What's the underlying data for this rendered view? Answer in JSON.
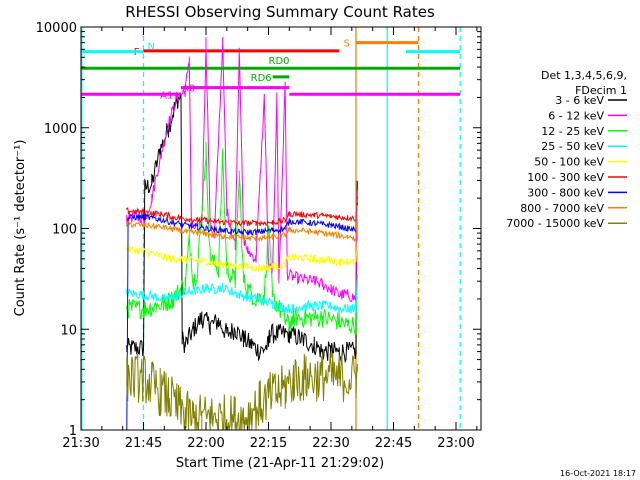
{
  "chart_data": {
    "type": "line",
    "title": "RHESSI Observing Summary Count Rates",
    "xlabel": "Start Time (21-Apr-11 21:29:02)",
    "ylabel": "Count Rate (s⁻¹ detector⁻¹)",
    "x_unit": "minutes after 21:29:02",
    "xlim": [
      0,
      96
    ],
    "ylim": [
      1,
      10000
    ],
    "y_scale": "log",
    "x_ticks": [
      {
        "t": 0,
        "label": "21:30"
      },
      {
        "t": 15,
        "label": "21:45"
      },
      {
        "t": 30,
        "label": "22:00"
      },
      {
        "t": 45,
        "label": "22:15"
      },
      {
        "t": 60,
        "label": "22:30"
      },
      {
        "t": 75,
        "label": "22:45"
      },
      {
        "t": 90,
        "label": "23:00"
      }
    ],
    "y_ticks": [
      {
        "v": 1,
        "label": "1"
      },
      {
        "v": 10,
        "label": "10"
      },
      {
        "v": 100,
        "label": "100"
      },
      {
        "v": 1000,
        "label": "1000"
      },
      {
        "v": 10000,
        "label": "10000"
      }
    ],
    "legend": {
      "position": "right",
      "header": [
        "Det 1,3,4,5,6,9,",
        "FDecim 1"
      ]
    },
    "series": [
      {
        "name": "3 - 6 keV",
        "color": "#000000",
        "noise": 0.1,
        "points": [
          [
            11,
            6.5
          ],
          [
            15,
            6.5
          ],
          [
            15.3,
            250
          ],
          [
            17,
            280
          ],
          [
            19,
            600
          ],
          [
            21,
            1000
          ],
          [
            23,
            1900
          ],
          [
            24,
            2000
          ],
          [
            24.3,
            8
          ],
          [
            25,
            7
          ],
          [
            27,
            10
          ],
          [
            29,
            13
          ],
          [
            31,
            11
          ],
          [
            33,
            12
          ],
          [
            35,
            9
          ],
          [
            37,
            10
          ],
          [
            39,
            8
          ],
          [
            41,
            7
          ],
          [
            43,
            6
          ],
          [
            45,
            7
          ],
          [
            45.3,
            9
          ],
          [
            50,
            9
          ],
          [
            53,
            8
          ],
          [
            56,
            7
          ],
          [
            58,
            6
          ],
          [
            60,
            6
          ],
          [
            62,
            6
          ],
          [
            66,
            6
          ],
          [
            66.3,
            250
          ]
        ]
      },
      {
        "name": "6 - 12 keV",
        "color": "#ff00ff",
        "noise": 0.06,
        "points": [
          [
            11,
            130
          ],
          [
            15,
            130
          ],
          [
            15.3,
            120
          ],
          [
            17,
            200
          ],
          [
            19,
            500
          ],
          [
            21,
            1100
          ],
          [
            23,
            2000
          ],
          [
            25,
            2300
          ],
          [
            26,
            5000
          ],
          [
            26.5,
            100
          ],
          [
            29,
            110
          ],
          [
            30,
            7200
          ],
          [
            31,
            110
          ],
          [
            32,
            80
          ],
          [
            34,
            7000
          ],
          [
            35,
            150
          ],
          [
            37,
            70
          ],
          [
            38,
            6500
          ],
          [
            39,
            80
          ],
          [
            40,
            60
          ],
          [
            42,
            50
          ],
          [
            44,
            2000
          ],
          [
            45,
            40
          ],
          [
            46,
            40
          ],
          [
            47,
            2000
          ],
          [
            47.5,
            30
          ],
          [
            49,
            2700
          ],
          [
            49.5,
            35
          ],
          [
            52,
            32
          ],
          [
            56,
            30
          ],
          [
            58,
            28
          ],
          [
            60,
            25
          ],
          [
            62,
            22
          ],
          [
            64,
            22
          ],
          [
            66,
            20
          ],
          [
            66.3,
            210
          ]
        ]
      },
      {
        "name": "12 - 25 keV",
        "color": "#00ff00",
        "noise": 0.1,
        "points": [
          [
            11,
            16
          ],
          [
            15,
            16
          ],
          [
            15.3,
            16
          ],
          [
            18,
            17
          ],
          [
            20,
            18
          ],
          [
            22,
            20
          ],
          [
            24,
            25
          ],
          [
            25,
            28
          ],
          [
            26,
            80
          ],
          [
            27,
            30
          ],
          [
            28,
            40
          ],
          [
            30,
            600
          ],
          [
            31,
            50
          ],
          [
            33,
            40
          ],
          [
            34,
            500
          ],
          [
            35,
            40
          ],
          [
            37,
            30
          ],
          [
            38,
            350
          ],
          [
            39,
            30
          ],
          [
            40,
            25
          ],
          [
            42,
            20
          ],
          [
            44,
            22
          ],
          [
            45,
            100
          ],
          [
            46,
            20
          ],
          [
            47,
            18
          ],
          [
            49,
            12
          ],
          [
            50,
            11
          ],
          [
            51,
            13
          ],
          [
            54,
            13
          ],
          [
            58,
            13
          ],
          [
            62,
            12
          ],
          [
            64,
            11
          ],
          [
            66,
            11
          ],
          [
            66.3,
            30
          ]
        ]
      },
      {
        "name": "25 - 50 keV",
        "color": "#00ffff",
        "noise": 0.05,
        "points": [
          [
            11,
            23
          ],
          [
            15,
            22
          ],
          [
            18,
            21
          ],
          [
            20,
            20
          ],
          [
            22,
            21
          ],
          [
            24,
            22
          ],
          [
            26,
            24
          ],
          [
            28,
            24
          ],
          [
            30,
            26
          ],
          [
            32,
            25
          ],
          [
            34,
            26
          ],
          [
            36,
            24
          ],
          [
            38,
            22
          ],
          [
            40,
            21
          ],
          [
            42,
            20
          ],
          [
            44,
            19
          ],
          [
            46,
            18
          ],
          [
            48,
            17
          ],
          [
            49,
            16
          ],
          [
            51,
            16
          ],
          [
            53,
            17
          ],
          [
            56,
            17
          ],
          [
            58,
            17
          ],
          [
            60,
            17
          ],
          [
            62,
            16
          ],
          [
            64,
            16
          ],
          [
            66,
            16
          ],
          [
            66.3,
            30
          ]
        ]
      },
      {
        "name": "50 - 100 keV",
        "color": "#ffff00",
        "noise": 0.04,
        "points": [
          [
            11,
            62
          ],
          [
            15,
            60
          ],
          [
            18,
            55
          ],
          [
            20,
            52
          ],
          [
            22,
            50
          ],
          [
            24,
            50
          ],
          [
            26,
            48
          ],
          [
            28,
            48
          ],
          [
            30,
            47
          ],
          [
            32,
            45
          ],
          [
            34,
            44
          ],
          [
            36,
            43
          ],
          [
            38,
            42
          ],
          [
            40,
            42
          ],
          [
            42,
            41
          ],
          [
            44,
            41
          ],
          [
            46,
            42
          ],
          [
            48,
            43
          ],
          [
            49,
            45
          ],
          [
            50,
            52
          ],
          [
            53,
            51
          ],
          [
            56,
            50
          ],
          [
            58,
            49
          ],
          [
            60,
            48
          ],
          [
            62,
            47
          ],
          [
            64,
            47
          ],
          [
            66,
            46
          ],
          [
            66.3,
            70
          ]
        ]
      },
      {
        "name": "100 - 300 keV",
        "color": "#ff0000",
        "noise": 0.03,
        "points": [
          [
            11,
            150
          ],
          [
            15,
            145
          ],
          [
            18,
            140
          ],
          [
            20,
            138
          ],
          [
            22,
            130
          ],
          [
            24,
            127
          ],
          [
            26,
            124
          ],
          [
            28,
            122
          ],
          [
            30,
            120
          ],
          [
            32,
            118
          ],
          [
            34,
            116
          ],
          [
            36,
            115
          ],
          [
            38,
            113
          ],
          [
            40,
            113
          ],
          [
            42,
            113
          ],
          [
            44,
            114
          ],
          [
            46,
            115
          ],
          [
            48,
            118
          ],
          [
            49,
            120
          ],
          [
            50,
            140
          ],
          [
            53,
            138
          ],
          [
            56,
            136
          ],
          [
            58,
            134
          ],
          [
            60,
            132
          ],
          [
            62,
            130
          ],
          [
            64,
            128
          ],
          [
            66,
            125
          ],
          [
            66.3,
            200
          ]
        ]
      },
      {
        "name": "300 - 800 keV",
        "color": "#0000ff",
        "noise": 0.03,
        "points": [
          [
            11,
            1
          ],
          [
            11.3,
            128
          ],
          [
            15,
            130
          ],
          [
            18,
            125
          ],
          [
            20,
            120
          ],
          [
            22,
            115
          ],
          [
            24,
            110
          ],
          [
            26,
            106
          ],
          [
            28,
            103
          ],
          [
            30,
            100
          ],
          [
            32,
            98
          ],
          [
            34,
            96
          ],
          [
            36,
            94
          ],
          [
            38,
            92
          ],
          [
            40,
            92
          ],
          [
            42,
            92
          ],
          [
            44,
            94
          ],
          [
            46,
            96
          ],
          [
            48,
            98
          ],
          [
            49,
            100
          ],
          [
            50,
            118
          ],
          [
            53,
            116
          ],
          [
            56,
            113
          ],
          [
            58,
            110
          ],
          [
            60,
            108
          ],
          [
            62,
            104
          ],
          [
            64,
            100
          ],
          [
            66,
            96
          ],
          [
            66.3,
            170
          ]
        ]
      },
      {
        "name": "800 - 7000 keV",
        "color": "#ff7f00",
        "noise": 0.03,
        "points": [
          [
            11,
            110
          ],
          [
            15,
            108
          ],
          [
            18,
            105
          ],
          [
            20,
            102
          ],
          [
            22,
            98
          ],
          [
            24,
            95
          ],
          [
            26,
            92
          ],
          [
            28,
            90
          ],
          [
            30,
            88
          ],
          [
            32,
            86
          ],
          [
            34,
            84
          ],
          [
            36,
            83
          ],
          [
            38,
            81
          ],
          [
            40,
            80
          ],
          [
            42,
            80
          ],
          [
            44,
            81
          ],
          [
            46,
            82
          ],
          [
            48,
            84
          ],
          [
            49,
            86
          ],
          [
            50,
            96
          ],
          [
            53,
            95
          ],
          [
            56,
            92
          ],
          [
            58,
            90
          ],
          [
            60,
            88
          ],
          [
            62,
            85
          ],
          [
            64,
            83
          ],
          [
            66,
            80
          ],
          [
            66.3,
            160
          ]
        ]
      },
      {
        "name": "7000 - 15000 keV",
        "color": "#808000",
        "noise": 0.25,
        "points": [
          [
            11,
            3.3
          ],
          [
            15,
            3.3
          ],
          [
            17,
            2.8
          ],
          [
            19,
            2.4
          ],
          [
            21,
            2.1
          ],
          [
            23,
            1.7
          ],
          [
            25,
            1.4
          ],
          [
            27,
            1.3
          ],
          [
            29,
            1.3
          ],
          [
            31,
            1.3
          ],
          [
            33,
            1.3
          ],
          [
            35,
            1.3
          ],
          [
            37,
            1.3
          ],
          [
            39,
            1.3
          ],
          [
            41,
            1.5
          ],
          [
            43,
            1.8
          ],
          [
            45,
            2.1
          ],
          [
            47,
            2.3
          ],
          [
            49,
            2.6
          ],
          [
            51,
            3.2
          ],
          [
            54,
            3.3
          ],
          [
            58,
            3.4
          ],
          [
            62,
            3.3
          ],
          [
            66,
            3.3
          ],
          [
            66.3,
            3.5
          ]
        ]
      }
    ],
    "flag_lines": [
      {
        "color": "#ff0000",
        "label": "F",
        "segments": [
          [
            15,
            62
          ]
        ],
        "y": 5800
      },
      {
        "color": "#00aa00",
        "label": "RD0",
        "segments": [
          [
            0,
            91
          ]
        ],
        "y": 3900
      },
      {
        "color": "#00aa00",
        "label": "RD6",
        "segments": [
          [
            46,
            50
          ]
        ],
        "y": 3200
      },
      {
        "color": "#ff00ff",
        "label": "A1",
        "segments": [
          [
            0,
            24
          ],
          [
            50,
            91
          ]
        ],
        "y": 2150
      },
      {
        "color": "#ff00ff",
        "label": "A0",
        "segments": [
          [
            24,
            50
          ]
        ],
        "y": 2500
      },
      {
        "color": "#00ffff",
        "label": "N",
        "segments": [
          [
            0,
            15
          ],
          [
            78,
            91
          ]
        ],
        "y": 5700
      },
      {
        "color": "#ff7f00",
        "label": "S",
        "segments": [
          [
            66,
            81
          ]
        ],
        "y": 7000
      }
    ],
    "vertical_markers": [
      {
        "t": 0.2,
        "color": "#00ffff",
        "style": "solid"
      },
      {
        "t": 15,
        "color": "#00ffff",
        "style": "dashed"
      },
      {
        "t": 66,
        "color": "#ff7f00",
        "style": "solid"
      },
      {
        "t": 73.5,
        "color": "#00ffff",
        "style": "solid"
      },
      {
        "t": 81,
        "color": "#ff7f00",
        "style": "dashed"
      },
      {
        "t": 91,
        "color": "#00ffff",
        "style": "dashed"
      }
    ],
    "footer_date": "16-Oct-2021 18:17"
  }
}
